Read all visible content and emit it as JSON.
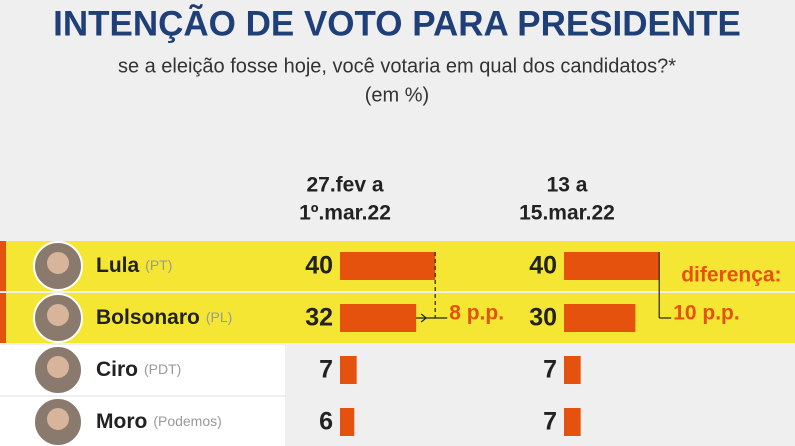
{
  "chart_data": {
    "type": "bar",
    "title": "INTENÇÃO DE VOTO PARA PRESIDENTE",
    "subtitle": "se a eleição fosse hoje, você votaria em qual dos candidatos?*",
    "unit": "(em %)",
    "categories": [
      "Lula",
      "Bolsonaro",
      "Ciro",
      "Moro"
    ],
    "parties": [
      "(PT)",
      "(PL)",
      "(PDT)",
      "(Podemos)"
    ],
    "highlight": [
      true,
      true,
      false,
      false
    ],
    "highlight_color": "#f6e634",
    "series": [
      {
        "name": [
          "27.fev a",
          "1º.mar.22"
        ],
        "color": "#e5520e",
        "values": [
          40,
          32,
          7,
          6
        ],
        "annotation": "8 p.p."
      },
      {
        "name": [
          "13 a",
          "15.mar.22"
        ],
        "color": "#e5520e",
        "values": [
          40,
          30,
          7,
          7
        ],
        "annotation_title": "diferença:",
        "annotation": "10 p.p."
      }
    ]
  }
}
